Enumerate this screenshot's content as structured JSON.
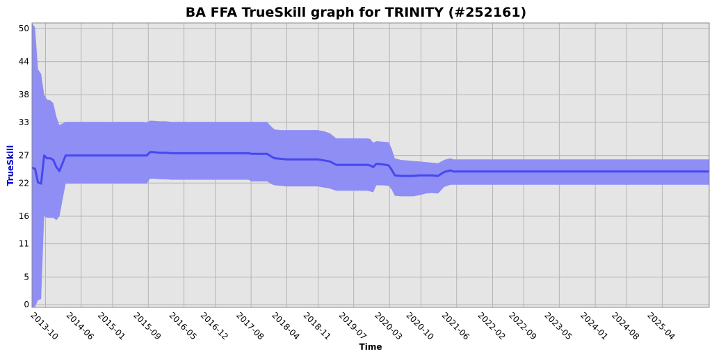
{
  "chart_data": {
    "type": "line",
    "title": "BA FFA TrueSkill graph for TRINITY (#252161)",
    "xlabel": "Time",
    "ylabel": "TrueSkill",
    "ylim": [
      -0.5,
      51
    ],
    "xlim": [
      "2013-07-01",
      "2026-02-15"
    ],
    "yticks": [
      0,
      5,
      11,
      16,
      22,
      27,
      33,
      38,
      44,
      50
    ],
    "xticks": [
      "2013-10",
      "2014-06",
      "2015-01",
      "2015-09",
      "2016-05",
      "2016-12",
      "2017-08",
      "2018-04",
      "2018-11",
      "2019-07",
      "2020-03",
      "2020-10",
      "2021-06",
      "2022-02",
      "2022-09",
      "2023-05",
      "2024-01",
      "2024-08",
      "2025-04"
    ],
    "grid": true,
    "colors": {
      "plot_bg": "#e5e5e5",
      "grid": "#b4b4b4",
      "band": "#8e8ef5",
      "line": "#4747ef"
    },
    "series": [
      {
        "x": [
          "2013-07-01",
          "2013-07-22",
          "2013-08-11",
          "2013-09-01",
          "2013-09-22",
          "2013-10-12",
          "2013-11-02",
          "2013-11-23",
          "2013-12-14",
          "2014-01-04",
          "2014-02-15",
          "2014-04-27",
          "2014-06-08",
          "2014-07-20",
          "2014-09-01",
          "2014-10-13",
          "2014-11-24",
          "2015-01-04",
          "2015-02-15",
          "2015-03-29",
          "2015-05-10",
          "2015-06-21",
          "2015-08-01",
          "2015-08-22",
          "2015-09-12",
          "2015-10-03",
          "2015-11-14",
          "2015-12-26",
          "2016-02-06",
          "2016-03-19",
          "2016-04-30",
          "2016-06-10",
          "2016-07-22",
          "2016-09-02",
          "2016-10-14",
          "2016-11-25",
          "2017-01-06",
          "2017-02-17",
          "2017-03-31",
          "2017-05-12",
          "2017-06-23",
          "2017-07-14",
          "2017-08-04",
          "2017-08-25",
          "2017-10-06",
          "2017-11-17",
          "2017-12-18",
          "2018-01-08",
          "2018-02-19",
          "2018-04-02",
          "2018-05-14",
          "2018-06-25",
          "2018-08-06",
          "2018-09-17",
          "2018-10-29",
          "2018-12-10",
          "2019-01-21",
          "2019-03-04",
          "2019-04-15",
          "2019-05-27",
          "2019-07-08",
          "2019-08-19",
          "2019-09-30",
          "2019-10-21",
          "2019-11-11",
          "2019-12-02",
          "2020-01-13",
          "2020-02-24",
          "2020-03-16",
          "2020-04-06",
          "2020-05-18",
          "2020-06-29",
          "2020-08-10",
          "2020-09-21",
          "2020-11-02",
          "2020-12-14",
          "2021-01-25",
          "2021-03-08",
          "2021-04-19",
          "2021-05-10",
          "2021-05-31",
          "2021-07-12",
          "2021-10-01",
          "2022-01-01",
          "2022-06-01",
          "2023-01-01",
          "2023-06-01",
          "2024-01-01",
          "2024-06-01",
          "2025-01-01",
          "2025-06-01",
          "2025-12-01",
          "2026-02-15"
        ],
        "values": [
          24.8,
          24.6,
          22.1,
          21.9,
          27.0,
          26.5,
          26.5,
          26.2,
          24.9,
          24.2,
          27.0,
          27.0,
          27.0,
          27.0,
          27.0,
          27.0,
          27.0,
          27.0,
          27.0,
          27.0,
          27.0,
          27.0,
          27.0,
          27.0,
          27.6,
          27.6,
          27.5,
          27.5,
          27.4,
          27.4,
          27.4,
          27.4,
          27.4,
          27.4,
          27.4,
          27.4,
          27.4,
          27.4,
          27.4,
          27.4,
          27.4,
          27.4,
          27.3,
          27.3,
          27.3,
          27.3,
          26.8,
          26.5,
          26.4,
          26.3,
          26.3,
          26.3,
          26.3,
          26.3,
          26.3,
          26.1,
          25.9,
          25.3,
          25.3,
          25.3,
          25.3,
          25.3,
          25.3,
          25.2,
          24.9,
          25.5,
          25.4,
          25.2,
          24.4,
          23.4,
          23.3,
          23.3,
          23.3,
          23.4,
          23.4,
          23.4,
          23.3,
          24.0,
          24.3,
          24.1,
          24.1,
          24.1,
          24.1,
          24.1,
          24.1,
          24.1,
          24.1,
          24.1,
          24.1,
          24.1,
          24.1,
          24.1,
          24.1
        ],
        "upper": [
          51.0,
          50.2,
          42.6,
          41.8,
          38.0,
          37.1,
          37.0,
          36.5,
          34.0,
          32.5,
          33.1,
          33.1,
          33.1,
          33.1,
          33.1,
          33.1,
          33.1,
          33.1,
          33.1,
          33.1,
          33.1,
          33.1,
          33.1,
          33.0,
          33.3,
          33.3,
          33.2,
          33.2,
          33.1,
          33.1,
          33.1,
          33.1,
          33.1,
          33.1,
          33.1,
          33.1,
          33.1,
          33.1,
          33.1,
          33.1,
          33.1,
          33.1,
          33.1,
          33.1,
          33.1,
          33.1,
          32.2,
          31.7,
          31.6,
          31.6,
          31.6,
          31.6,
          31.6,
          31.6,
          31.6,
          31.4,
          31.0,
          30.1,
          30.1,
          30.1,
          30.1,
          30.1,
          30.1,
          30.0,
          29.3,
          29.6,
          29.5,
          29.4,
          28.2,
          26.5,
          26.2,
          26.1,
          26.0,
          25.9,
          25.8,
          25.7,
          25.6,
          26.2,
          26.5,
          26.3,
          26.3,
          26.3,
          26.3,
          26.3,
          26.3,
          26.3,
          26.3,
          26.3,
          26.3,
          26.3,
          26.3,
          26.3,
          26.3
        ],
        "lower": [
          -0.5,
          -0.4,
          0.8,
          1.0,
          16.0,
          15.7,
          15.7,
          15.7,
          15.3,
          16.0,
          21.9,
          21.9,
          21.9,
          21.9,
          21.9,
          21.9,
          21.9,
          21.9,
          21.9,
          21.9,
          21.9,
          21.9,
          21.9,
          21.9,
          22.8,
          22.8,
          22.7,
          22.7,
          22.6,
          22.6,
          22.6,
          22.6,
          22.6,
          22.6,
          22.6,
          22.6,
          22.6,
          22.6,
          22.6,
          22.6,
          22.6,
          22.6,
          22.3,
          22.3,
          22.3,
          22.3,
          21.8,
          21.6,
          21.5,
          21.4,
          21.4,
          21.4,
          21.4,
          21.4,
          21.4,
          21.2,
          21.0,
          20.6,
          20.6,
          20.6,
          20.6,
          20.6,
          20.6,
          20.5,
          20.3,
          21.6,
          21.6,
          21.5,
          20.8,
          19.7,
          19.6,
          19.6,
          19.6,
          19.8,
          20.1,
          20.2,
          20.1,
          21.3,
          21.7,
          21.7,
          21.7,
          21.7,
          21.7,
          21.7,
          21.7,
          21.7,
          21.7,
          21.7,
          21.7,
          21.7,
          21.7,
          21.7,
          21.7
        ]
      }
    ]
  }
}
